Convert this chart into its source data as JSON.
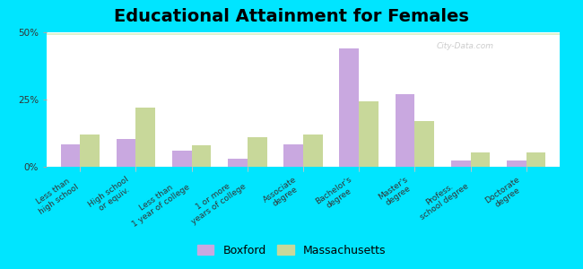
{
  "title": "Educational Attainment for Females",
  "categories": [
    "Less than\nhigh school",
    "High school\nor equiv.",
    "Less than\n1 year of college",
    "1 or more\nyears of college",
    "Associate\ndegree",
    "Bachelor's\ndegree",
    "Master's\ndegree",
    "Profess.\nschool degree",
    "Doctorate\ndegree"
  ],
  "boxford": [
    8.5,
    10.5,
    6.0,
    3.0,
    8.5,
    44.0,
    27.0,
    2.5,
    2.5
  ],
  "massachusetts": [
    12.0,
    22.0,
    8.0,
    11.0,
    12.0,
    24.5,
    17.0,
    5.5,
    5.5
  ],
  "boxford_color": "#c9a8e0",
  "massachusetts_color": "#c8d89a",
  "outer_bg": "#00e5ff",
  "ylim": [
    0,
    50
  ],
  "yticks": [
    0,
    25,
    50
  ],
  "ytick_labels": [
    "0%",
    "25%",
    "50%"
  ],
  "legend_boxford": "Boxford",
  "legend_massachusetts": "Massachusetts",
  "bar_width": 0.35,
  "title_fontsize": 14,
  "tick_fontsize": 6.5,
  "legend_fontsize": 9
}
